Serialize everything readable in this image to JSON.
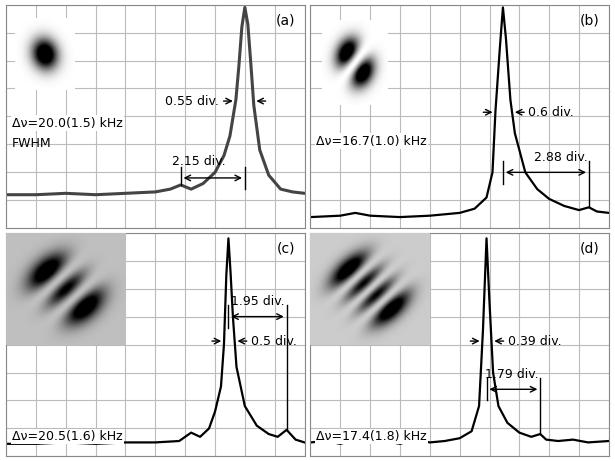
{
  "chart_data": [
    {
      "type": "line",
      "title": "(a)",
      "x": [
        0,
        1,
        2,
        3,
        4,
        5,
        5.5,
        5.85,
        6.2,
        6.6,
        7.0,
        7.3,
        7.5,
        7.7,
        7.8,
        7.9,
        8.0,
        8.1,
        8.2,
        8.3,
        8.5,
        8.8,
        9.2,
        9.6,
        10
      ],
      "values": [
        1.2,
        1.2,
        1.25,
        1.2,
        1.25,
        1.3,
        1.4,
        1.55,
        1.4,
        1.6,
        2.0,
        2.6,
        3.3,
        4.6,
        5.8,
        7.2,
        7.9,
        7.3,
        5.9,
        4.4,
        2.8,
        1.9,
        1.4,
        1.3,
        1.25
      ],
      "color": "#444444",
      "xlim": [
        0,
        10
      ],
      "ylim": [
        0,
        8
      ],
      "xticks": [
        0,
        1,
        2,
        3,
        4,
        5,
        6,
        7,
        8,
        9,
        10
      ],
      "yticks": [
        0,
        1,
        2,
        3,
        4,
        5,
        6,
        7,
        8
      ],
      "grid": true,
      "tick_labels": false,
      "annotations": {
        "linewidth": "Δν=20.0(1.5) kHz",
        "note": "FWHM",
        "width": "0.55 div.",
        "spacing": "2.15 div."
      }
    },
    {
      "type": "line",
      "title": "(b)",
      "x": [
        0,
        1,
        1.5,
        2,
        3,
        4,
        5,
        5.5,
        5.9,
        6.1,
        6.2,
        6.35,
        6.45,
        6.55,
        6.7,
        6.85,
        7.2,
        7.6,
        8.0,
        8.5,
        9.0,
        9.33,
        9.6,
        10
      ],
      "values": [
        0.4,
        0.45,
        0.55,
        0.45,
        0.4,
        0.45,
        0.55,
        0.7,
        1.1,
        2.0,
        4.2,
        6.5,
        7.9,
        6.8,
        4.6,
        3.4,
        2.0,
        1.4,
        1.05,
        0.8,
        0.65,
        0.75,
        0.6,
        0.55
      ],
      "color": "#000000",
      "xlim": [
        0,
        10
      ],
      "ylim": [
        0,
        8
      ],
      "xticks": [
        0,
        1,
        2,
        3,
        4,
        5,
        6,
        7,
        8,
        9,
        10
      ],
      "yticks": [
        0,
        1,
        2,
        3,
        4,
        5,
        6,
        7,
        8
      ],
      "grid": true,
      "tick_labels": false,
      "annotations": {
        "linewidth": "Δν=16.7(1.0) kHz",
        "width": "0.6 div.",
        "spacing": "2.88 div."
      }
    },
    {
      "type": "line",
      "title": "(c)",
      "x": [
        0,
        1,
        2,
        3,
        4,
        5,
        5.8,
        6.2,
        6.5,
        6.8,
        7.0,
        7.2,
        7.3,
        7.38,
        7.45,
        7.52,
        7.6,
        7.72,
        8.0,
        8.4,
        8.8,
        9.1,
        9.4,
        9.7,
        10
      ],
      "values": [
        0.45,
        0.45,
        0.5,
        0.45,
        0.5,
        0.5,
        0.55,
        0.85,
        0.7,
        1.0,
        1.6,
        2.5,
        4.0,
        6.5,
        7.8,
        6.6,
        5.0,
        3.2,
        1.8,
        1.1,
        0.8,
        0.7,
        0.95,
        0.6,
        0.5
      ],
      "color": "#000000",
      "xlim": [
        0,
        10
      ],
      "ylim": [
        0,
        8
      ],
      "xticks": [
        0,
        1,
        2,
        3,
        4,
        5,
        6,
        7,
        8,
        9,
        10
      ],
      "yticks": [
        0,
        1,
        2,
        3,
        4,
        5,
        6,
        7,
        8
      ],
      "grid": true,
      "tick_labels": false,
      "annotations": {
        "linewidth": "Δν=20.5(1.6) kHz",
        "width": "0.5 div.",
        "spacing": "1.95 div."
      }
    },
    {
      "type": "line",
      "title": "(d)",
      "x": [
        0,
        0.5,
        1,
        1.5,
        2,
        2.5,
        3,
        3.5,
        4,
        4.5,
        5,
        5.4,
        5.65,
        5.78,
        5.9,
        6.0,
        6.12,
        6.3,
        6.6,
        7.0,
        7.4,
        7.7,
        7.9,
        8.3,
        8.8,
        9.3,
        10
      ],
      "values": [
        0.5,
        0.55,
        0.45,
        0.6,
        0.5,
        0.55,
        0.45,
        0.6,
        0.5,
        0.55,
        0.65,
        0.9,
        1.8,
        4.5,
        7.8,
        5.5,
        3.0,
        1.8,
        1.2,
        0.85,
        0.7,
        0.8,
        0.6,
        0.55,
        0.6,
        0.5,
        0.55
      ],
      "color": "#000000",
      "xlim": [
        0,
        10
      ],
      "ylim": [
        0,
        8
      ],
      "xticks": [
        0,
        1,
        2,
        3,
        4,
        5,
        6,
        7,
        8,
        9,
        10
      ],
      "yticks": [
        0,
        1,
        2,
        3,
        4,
        5,
        6,
        7,
        8
      ],
      "grid": true,
      "tick_labels": false,
      "annotations": {
        "linewidth": "Δν=17.4(1.8) kHz",
        "width": "0.39 div.",
        "spacing": "1.79 div."
      }
    }
  ]
}
